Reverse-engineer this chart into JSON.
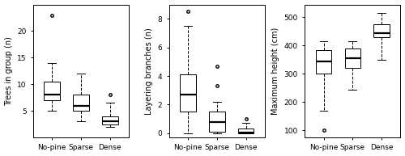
{
  "panel1": {
    "ylabel": "Trees in group (n)",
    "categories": [
      "No-pine",
      "Sparse",
      "Dense"
    ],
    "boxes": [
      {
        "q1": 7.0,
        "median": 8.0,
        "q3": 10.5,
        "whislo": 5.0,
        "whishi": 14.0,
        "fliers": [
          23.0
        ]
      },
      {
        "q1": 5.0,
        "median": 6.0,
        "q3": 8.0,
        "whislo": 3.0,
        "whishi": 12.0,
        "fliers": []
      },
      {
        "q1": 2.5,
        "median": 3.0,
        "q3": 4.0,
        "whislo": 2.0,
        "whishi": 6.5,
        "fliers": [
          8.0
        ]
      }
    ],
    "ylim": [
      0,
      25
    ],
    "yticks": [
      5,
      10,
      15,
      20
    ]
  },
  "panel2": {
    "ylabel": "Layering branches (n)",
    "categories": [
      "No-pine",
      "Sparse",
      "Dense"
    ],
    "boxes": [
      {
        "q1": 1.5,
        "median": 2.7,
        "q3": 4.1,
        "whislo": 0.0,
        "whishi": 7.5,
        "fliers": [
          8.5
        ]
      },
      {
        "q1": 0.1,
        "median": 0.8,
        "q3": 1.5,
        "whislo": 0.0,
        "whishi": 2.2,
        "fliers": [
          3.3,
          4.7
        ]
      },
      {
        "q1": 0.0,
        "median": 0.05,
        "q3": 0.3,
        "whislo": 0.0,
        "whishi": 0.7,
        "fliers": [
          1.0
        ]
      }
    ],
    "ylim": [
      -0.3,
      9.0
    ],
    "yticks": [
      0,
      2,
      4,
      6,
      8
    ]
  },
  "panel3": {
    "ylabel": "Maximum height (cm)",
    "categories": [
      "No-pine",
      "Sparse",
      "Dense"
    ],
    "boxes": [
      {
        "q1": 300,
        "median": 345,
        "q3": 385,
        "whislo": 170,
        "whishi": 415,
        "fliers": [
          100
        ]
      },
      {
        "q1": 320,
        "median": 355,
        "q3": 390,
        "whislo": 245,
        "whishi": 415,
        "fliers": []
      },
      {
        "q1": 430,
        "median": 445,
        "q3": 475,
        "whislo": 350,
        "whishi": 515,
        "fliers": []
      }
    ],
    "ylim": [
      75,
      545
    ],
    "yticks": [
      100,
      200,
      300,
      400,
      500
    ]
  },
  "background_color": "#ffffff",
  "tick_fontsize": 6.5,
  "label_fontsize": 7.0,
  "cat_fontsize": 6.5
}
